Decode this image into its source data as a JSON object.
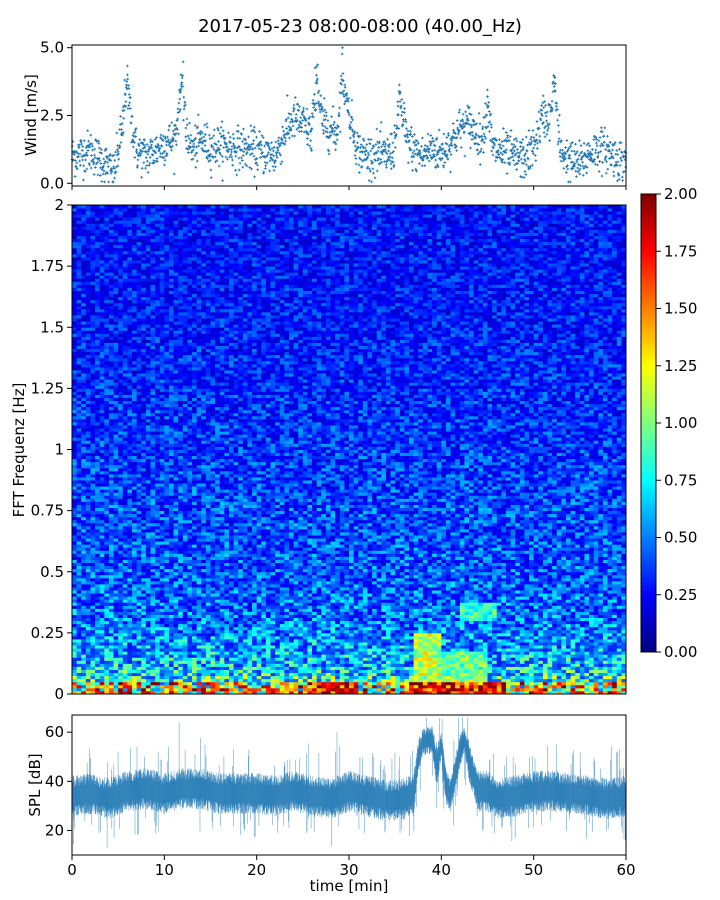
{
  "title": "2017-05-23 08:00-08:00 (40.00_Hz)",
  "chart_data": [
    {
      "type": "scatter",
      "name": "wind",
      "ylabel": "Wind [m/s]",
      "xlim": [
        0,
        60
      ],
      "ylim": [
        -0.1,
        5.1
      ],
      "yticks": [
        "0.0",
        "2.5",
        "5.0"
      ],
      "ytick_values": [
        0.0,
        2.5,
        5.0
      ],
      "marker_color": "#1f77b4",
      "approx_sample_count": 1800,
      "trend": {
        "t": [
          0,
          1,
          2,
          3,
          4,
          4.5,
          5,
          6,
          7,
          8,
          9,
          10,
          11,
          12,
          13,
          14,
          15,
          16,
          18,
          20,
          22,
          23,
          24,
          25,
          26,
          27,
          28,
          29,
          30,
          31,
          32,
          33,
          34,
          35,
          36,
          37,
          38,
          39,
          40,
          41,
          42,
          43,
          44,
          45,
          46,
          47,
          48,
          49,
          50,
          51,
          52,
          53,
          54,
          55,
          56,
          57,
          58,
          59,
          60
        ],
        "value": [
          1.0,
          1.1,
          1.2,
          0.9,
          0.6,
          0.3,
          1.2,
          2.9,
          1.2,
          1.0,
          1.2,
          1.5,
          1.6,
          2.5,
          1.2,
          1.6,
          1.3,
          1.4,
          1.3,
          1.2,
          1.0,
          1.8,
          2.4,
          2.2,
          1.8,
          2.3,
          2.0,
          1.7,
          2.6,
          1.2,
          1.0,
          1.1,
          1.0,
          1.3,
          1.8,
          1.2,
          1.0,
          1.3,
          1.1,
          1.5,
          2.0,
          2.2,
          1.7,
          1.4,
          1.2,
          1.1,
          1.0,
          0.9,
          1.3,
          2.5,
          2.3,
          1.2,
          0.8,
          0.7,
          1.1,
          1.3,
          1.2,
          0.9,
          0.8
        ]
      },
      "peaks": [
        {
          "t": 6.0,
          "value": 4.0
        },
        {
          "t": 11.8,
          "value": 4.0
        },
        {
          "t": 26.5,
          "value": 4.3
        },
        {
          "t": 29.3,
          "value": 5.0
        },
        {
          "t": 35.5,
          "value": 3.3
        },
        {
          "t": 45.0,
          "value": 3.2
        },
        {
          "t": 52.3,
          "value": 3.9
        }
      ]
    },
    {
      "type": "heatmap",
      "name": "spectrogram",
      "ylabel": "FFT Frequenz [Hz]",
      "xlim": [
        0,
        60
      ],
      "ylim": [
        0,
        2
      ],
      "yticks": [
        "0",
        "0.25",
        "0.5",
        "0.75",
        "1",
        "1.25",
        "1.5",
        "1.75",
        "2"
      ],
      "ytick_values": [
        0,
        0.25,
        0.5,
        0.75,
        1,
        1.25,
        1.5,
        1.75,
        2
      ],
      "colormap": "jet",
      "colorbar": {
        "vmin": 0.0,
        "vmax": 2.0,
        "ticks": [
          "0.00",
          "0.25",
          "0.50",
          "0.75",
          "1.00",
          "1.25",
          "1.50",
          "1.75",
          "2.00"
        ],
        "tick_values": [
          0.0,
          0.25,
          0.5,
          0.75,
          1.0,
          1.25,
          1.5,
          1.75,
          2.0
        ],
        "stops": [
          "#00007f",
          "#0000ff",
          "#007fff",
          "#00ffff",
          "#7fff7f",
          "#ffff00",
          "#ff7f00",
          "#ff0000",
          "#7f0000"
        ]
      },
      "typical_level_by_frequency": {
        "freq": [
          0,
          0.05,
          0.1,
          0.2,
          0.3,
          0.5,
          0.75,
          1.0,
          1.5,
          2.0
        ],
        "level": [
          1.3,
          0.9,
          0.7,
          0.6,
          0.5,
          0.45,
          0.42,
          0.38,
          0.32,
          0.3
        ]
      },
      "high_energy_regions": [
        {
          "t": [
            37,
            40
          ],
          "freq": [
            0,
            0.25
          ],
          "level": 1.2
        },
        {
          "t": [
            40,
            45
          ],
          "freq": [
            0,
            0.18
          ],
          "level": 1.0
        },
        {
          "t": [
            42,
            46
          ],
          "freq": [
            0.3,
            0.38
          ],
          "level": 0.9
        },
        {
          "t": [
            26,
            31
          ],
          "freq": [
            0,
            0.05
          ],
          "level": 1.9
        },
        {
          "t": [
            36.5,
            47
          ],
          "freq": [
            0,
            0.05
          ],
          "level": 1.8
        }
      ]
    },
    {
      "type": "line",
      "name": "spl",
      "ylabel": "SPL [dB]",
      "xlabel": "time [min]",
      "xlim": [
        0,
        60
      ],
      "ylim": [
        10,
        67
      ],
      "xticks": [
        "0",
        "10",
        "20",
        "30",
        "40",
        "50",
        "60"
      ],
      "xtick_values": [
        0,
        10,
        20,
        30,
        40,
        50,
        60
      ],
      "yticks": [
        "20",
        "40",
        "60"
      ],
      "ytick_values": [
        20,
        40,
        60
      ],
      "line_color": "#1f77b4",
      "trend": {
        "t": [
          0,
          2,
          4,
          6,
          8,
          10,
          12,
          14,
          16,
          18,
          20,
          22,
          24,
          26,
          28,
          30,
          32,
          34,
          36,
          37,
          37.5,
          38,
          39,
          39.5,
          40,
          40.5,
          41,
          42,
          42.5,
          43,
          44,
          45,
          46,
          48,
          50,
          52,
          54,
          56,
          58,
          60
        ],
        "mean": [
          34,
          35,
          33,
          36,
          37,
          35,
          37,
          37,
          35,
          35,
          35,
          34,
          36,
          34,
          33,
          36,
          34,
          32,
          33,
          35,
          50,
          56,
          57,
          46,
          55,
          38,
          34,
          52,
          57,
          48,
          36,
          36,
          33,
          34,
          36,
          36,
          35,
          34,
          33,
          34
        ],
        "spread": [
          6,
          6,
          6,
          6,
          6,
          6,
          6,
          6,
          6,
          6,
          6,
          6,
          6,
          6,
          6,
          6,
          6,
          6,
          6,
          6,
          5,
          4,
          4,
          6,
          4,
          5,
          5,
          5,
          4,
          6,
          6,
          6,
          6,
          6,
          6,
          6,
          6,
          6,
          6,
          6
        ]
      },
      "spikes": [
        {
          "t": 11.6,
          "value": 64
        },
        {
          "t": 28.7,
          "value": 60
        },
        {
          "t": 38.5,
          "value": 62
        },
        {
          "t": 52.5,
          "value": 55
        },
        {
          "t": 3.8,
          "value": 13
        }
      ]
    }
  ]
}
